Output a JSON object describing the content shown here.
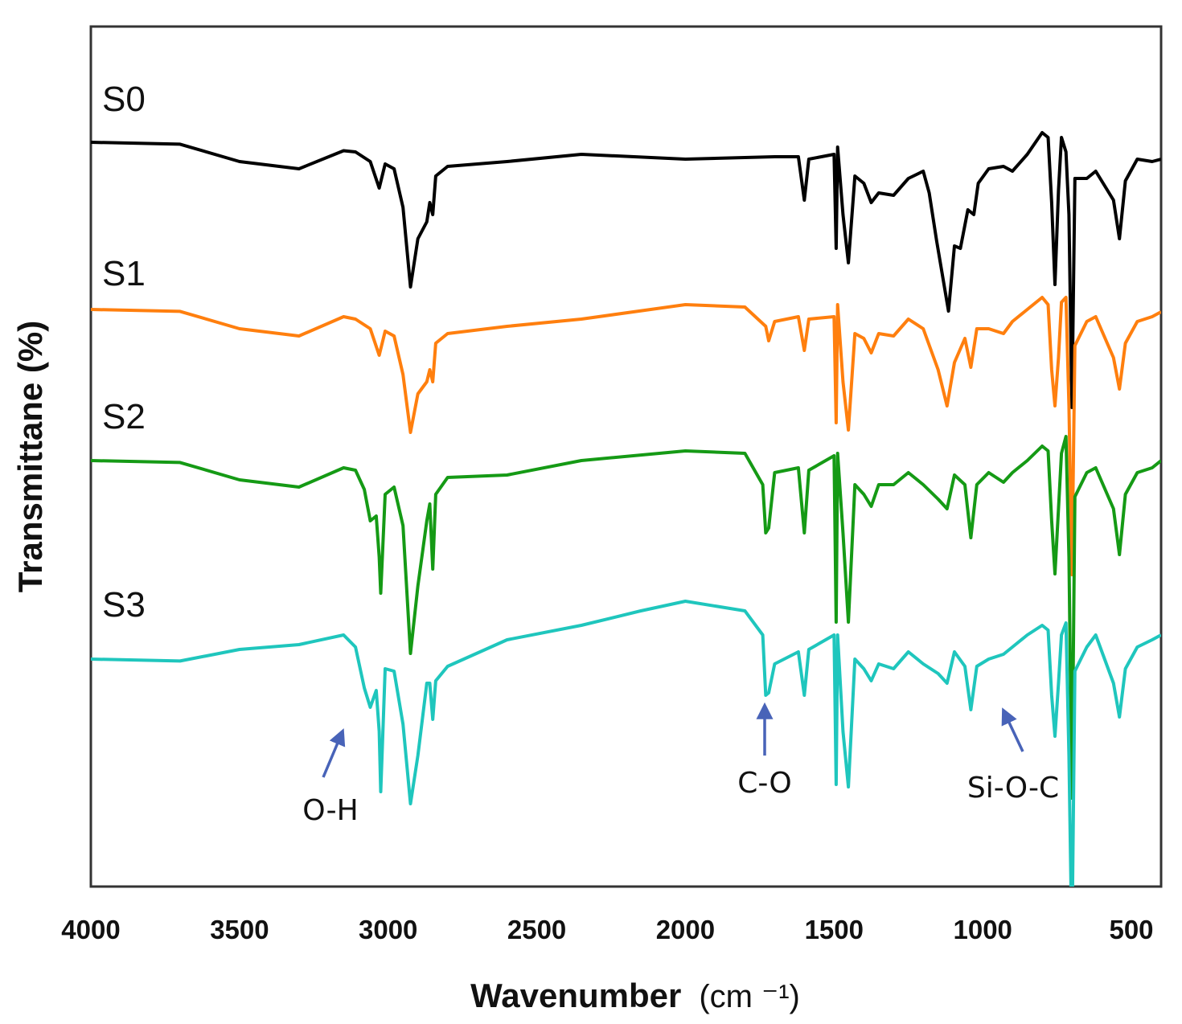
{
  "chart_data": {
    "type": "line",
    "xlabel": "Wavenumber",
    "xlabel_unit": "(cm ⁻¹)",
    "ylabel": "Transmittane (%)",
    "xlim": [
      4000,
      400
    ],
    "x_ticks": [
      4000,
      3500,
      3000,
      2500,
      2000,
      1500,
      1000,
      500
    ],
    "y_ticks_shown": false,
    "grid": false,
    "legend": "inline labels at left of each trace",
    "series": [
      {
        "name": "S0",
        "color": "#000000",
        "points": [
          [
            4000,
            0.0
          ],
          [
            3700,
            -0.8
          ],
          [
            3500,
            -8.0
          ],
          [
            3300,
            -11.0
          ],
          [
            3150,
            -3.5
          ],
          [
            3110,
            -4.0
          ],
          [
            3060,
            -8.0
          ],
          [
            3030,
            -19.0
          ],
          [
            3010,
            -9.0
          ],
          [
            2980,
            -11.0
          ],
          [
            2950,
            -27.0
          ],
          [
            2925,
            -60.0
          ],
          [
            2900,
            -40.0
          ],
          [
            2870,
            -33.0
          ],
          [
            2860,
            -25.0
          ],
          [
            2850,
            -30.0
          ],
          [
            2840,
            -14.0
          ],
          [
            2800,
            -10.0
          ],
          [
            2600,
            -8.0
          ],
          [
            2350,
            -5.0
          ],
          [
            2000,
            -7.0
          ],
          [
            1700,
            -6.0
          ],
          [
            1620,
            -6.0
          ],
          [
            1600,
            -24.0
          ],
          [
            1585,
            -7.0
          ],
          [
            1500,
            -5.0
          ],
          [
            1493,
            -44.0
          ],
          [
            1488,
            -2.0
          ],
          [
            1470,
            -30.0
          ],
          [
            1452,
            -50.0
          ],
          [
            1430,
            -14.0
          ],
          [
            1400,
            -17.0
          ],
          [
            1375,
            -25.0
          ],
          [
            1350,
            -21.0
          ],
          [
            1300,
            -22.0
          ],
          [
            1250,
            -15.0
          ],
          [
            1200,
            -12.0
          ],
          [
            1180,
            -21.0
          ],
          [
            1155,
            -41.0
          ],
          [
            1115,
            -70.0
          ],
          [
            1095,
            -43.0
          ],
          [
            1075,
            -44.0
          ],
          [
            1050,
            -28.0
          ],
          [
            1030,
            -30.0
          ],
          [
            1015,
            -17.0
          ],
          [
            980,
            -11.0
          ],
          [
            930,
            -10.0
          ],
          [
            900,
            -12.0
          ],
          [
            850,
            -5.0
          ],
          [
            800,
            4.0
          ],
          [
            780,
            2.0
          ],
          [
            768,
            -25.0
          ],
          [
            757,
            -59.0
          ],
          [
            745,
            -20.0
          ],
          [
            735,
            2.0
          ],
          [
            720,
            -4.0
          ],
          [
            710,
            -30.0
          ],
          [
            700,
            -110.0
          ],
          [
            690,
            -15.0
          ],
          [
            650,
            -15.0
          ],
          [
            620,
            -12.0
          ],
          [
            560,
            -24.0
          ],
          [
            540,
            -40.0
          ],
          [
            520,
            -16.0
          ],
          [
            480,
            -7.0
          ],
          [
            430,
            -8.0
          ],
          [
            400,
            -7.0
          ]
        ]
      },
      {
        "name": "S1",
        "color": "#ff7f0e",
        "points": [
          [
            4000,
            0.0
          ],
          [
            3700,
            -0.8
          ],
          [
            3500,
            -8.0
          ],
          [
            3300,
            -11.0
          ],
          [
            3150,
            -3.0
          ],
          [
            3110,
            -4.0
          ],
          [
            3060,
            -8.0
          ],
          [
            3030,
            -19.0
          ],
          [
            3010,
            -9.0
          ],
          [
            2980,
            -11.0
          ],
          [
            2950,
            -27.0
          ],
          [
            2925,
            -51.0
          ],
          [
            2900,
            -35.0
          ],
          [
            2870,
            -30.0
          ],
          [
            2860,
            -25.0
          ],
          [
            2850,
            -30.0
          ],
          [
            2840,
            -14.0
          ],
          [
            2800,
            -10.0
          ],
          [
            2600,
            -7.0
          ],
          [
            2350,
            -4.0
          ],
          [
            2000,
            2.0
          ],
          [
            1800,
            1.0
          ],
          [
            1730,
            -7.0
          ],
          [
            1720,
            -13.0
          ],
          [
            1700,
            -5.0
          ],
          [
            1620,
            -3.0
          ],
          [
            1600,
            -17.0
          ],
          [
            1585,
            -4.0
          ],
          [
            1500,
            -3.0
          ],
          [
            1493,
            -47.0
          ],
          [
            1488,
            2.0
          ],
          [
            1470,
            -30.0
          ],
          [
            1452,
            -50.0
          ],
          [
            1430,
            -10.0
          ],
          [
            1400,
            -12.0
          ],
          [
            1375,
            -18.0
          ],
          [
            1350,
            -10.0
          ],
          [
            1300,
            -11.0
          ],
          [
            1250,
            -4.0
          ],
          [
            1200,
            -8.0
          ],
          [
            1150,
            -25.0
          ],
          [
            1120,
            -40.0
          ],
          [
            1095,
            -22.0
          ],
          [
            1060,
            -12.0
          ],
          [
            1040,
            -24.0
          ],
          [
            1020,
            -8.0
          ],
          [
            980,
            -8.0
          ],
          [
            930,
            -10.0
          ],
          [
            900,
            -5.0
          ],
          [
            850,
            0.0
          ],
          [
            800,
            5.0
          ],
          [
            780,
            2.0
          ],
          [
            768,
            -25.0
          ],
          [
            757,
            -40.0
          ],
          [
            745,
            -20.0
          ],
          [
            735,
            3.0
          ],
          [
            720,
            5.0
          ],
          [
            710,
            -40.0
          ],
          [
            700,
            -110.0
          ],
          [
            690,
            -15.0
          ],
          [
            650,
            -5.0
          ],
          [
            620,
            -3.0
          ],
          [
            560,
            -20.0
          ],
          [
            540,
            -33.0
          ],
          [
            520,
            -14.0
          ],
          [
            480,
            -5.0
          ],
          [
            430,
            -3.0
          ],
          [
            400,
            -1.0
          ]
        ]
      },
      {
        "name": "S2",
        "color": "#159a15",
        "points": [
          [
            4000,
            0.0
          ],
          [
            3700,
            -0.8
          ],
          [
            3500,
            -8.0
          ],
          [
            3300,
            -11.0
          ],
          [
            3150,
            -3.0
          ],
          [
            3110,
            -4.0
          ],
          [
            3080,
            -12.0
          ],
          [
            3060,
            -25.0
          ],
          [
            3040,
            -23.0
          ],
          [
            3030,
            -40.0
          ],
          [
            3025,
            -55.0
          ],
          [
            3010,
            -14.0
          ],
          [
            2980,
            -11.0
          ],
          [
            2950,
            -27.0
          ],
          [
            2925,
            -80.0
          ],
          [
            2900,
            -52.0
          ],
          [
            2870,
            -25.0
          ],
          [
            2860,
            -18.0
          ],
          [
            2850,
            -45.0
          ],
          [
            2840,
            -14.0
          ],
          [
            2800,
            -7.0
          ],
          [
            2600,
            -6.0
          ],
          [
            2350,
            0.0
          ],
          [
            2000,
            4.0
          ],
          [
            1800,
            3.0
          ],
          [
            1740,
            -10.0
          ],
          [
            1730,
            -30.0
          ],
          [
            1720,
            -28.0
          ],
          [
            1700,
            -5.0
          ],
          [
            1620,
            -3.0
          ],
          [
            1600,
            -30.0
          ],
          [
            1585,
            -4.0
          ],
          [
            1500,
            2.0
          ],
          [
            1493,
            -67.0
          ],
          [
            1488,
            3.0
          ],
          [
            1470,
            -30.0
          ],
          [
            1452,
            -67.0
          ],
          [
            1430,
            -10.0
          ],
          [
            1400,
            -14.0
          ],
          [
            1375,
            -19.0
          ],
          [
            1350,
            -10.0
          ],
          [
            1300,
            -10.0
          ],
          [
            1250,
            -5.0
          ],
          [
            1200,
            -10.0
          ],
          [
            1150,
            -16.0
          ],
          [
            1120,
            -20.0
          ],
          [
            1095,
            -6.0
          ],
          [
            1060,
            -10.0
          ],
          [
            1040,
            -32.0
          ],
          [
            1020,
            -10.0
          ],
          [
            980,
            -5.0
          ],
          [
            930,
            -9.0
          ],
          [
            900,
            -5.0
          ],
          [
            850,
            0.0
          ],
          [
            800,
            6.0
          ],
          [
            780,
            4.0
          ],
          [
            768,
            -25.0
          ],
          [
            757,
            -47.0
          ],
          [
            745,
            -20.0
          ],
          [
            735,
            3.0
          ],
          [
            720,
            10.0
          ],
          [
            710,
            -40.0
          ],
          [
            700,
            -140.0
          ],
          [
            690,
            -15.0
          ],
          [
            650,
            -5.0
          ],
          [
            620,
            -3.0
          ],
          [
            560,
            -20.0
          ],
          [
            540,
            -39.0
          ],
          [
            520,
            -14.0
          ],
          [
            480,
            -5.0
          ],
          [
            430,
            -3.0
          ],
          [
            400,
            0.0
          ]
        ]
      },
      {
        "name": "S3",
        "color": "#1fc6bd",
        "points": [
          [
            4000,
            0.0
          ],
          [
            3700,
            -0.8
          ],
          [
            3500,
            4.0
          ],
          [
            3300,
            6.0
          ],
          [
            3150,
            10.0
          ],
          [
            3110,
            5.0
          ],
          [
            3080,
            -12.0
          ],
          [
            3060,
            -20.0
          ],
          [
            3040,
            -13.0
          ],
          [
            3030,
            -30.0
          ],
          [
            3025,
            -55.0
          ],
          [
            3010,
            -4.0
          ],
          [
            2980,
            -5.0
          ],
          [
            2950,
            -27.0
          ],
          [
            2925,
            -60.0
          ],
          [
            2900,
            -40.0
          ],
          [
            2870,
            -10.0
          ],
          [
            2860,
            -10.0
          ],
          [
            2850,
            -25.0
          ],
          [
            2840,
            -9.0
          ],
          [
            2800,
            -3.0
          ],
          [
            2600,
            8.0
          ],
          [
            2350,
            14.0
          ],
          [
            2150,
            20.0
          ],
          [
            2000,
            24.0
          ],
          [
            1800,
            20.0
          ],
          [
            1740,
            10.0
          ],
          [
            1730,
            -15.0
          ],
          [
            1720,
            -14.0
          ],
          [
            1700,
            -2.0
          ],
          [
            1620,
            3.0
          ],
          [
            1600,
            -15.0
          ],
          [
            1585,
            4.0
          ],
          [
            1500,
            10.0
          ],
          [
            1493,
            -52.0
          ],
          [
            1488,
            10.0
          ],
          [
            1470,
            -30.0
          ],
          [
            1452,
            -53.0
          ],
          [
            1430,
            0.0
          ],
          [
            1400,
            -4.0
          ],
          [
            1375,
            -9.0
          ],
          [
            1350,
            -2.0
          ],
          [
            1300,
            -4.0
          ],
          [
            1250,
            3.0
          ],
          [
            1200,
            -2.0
          ],
          [
            1150,
            -6.0
          ],
          [
            1120,
            -10.0
          ],
          [
            1095,
            3.0
          ],
          [
            1060,
            -3.0
          ],
          [
            1040,
            -21.0
          ],
          [
            1020,
            -3.0
          ],
          [
            980,
            0.0
          ],
          [
            930,
            2.0
          ],
          [
            900,
            5.0
          ],
          [
            850,
            10.0
          ],
          [
            800,
            14.0
          ],
          [
            780,
            12.0
          ],
          [
            768,
            -15.0
          ],
          [
            757,
            -32.0
          ],
          [
            745,
            -10.0
          ],
          [
            735,
            10.0
          ],
          [
            720,
            15.0
          ],
          [
            710,
            -40.0
          ],
          [
            700,
            -120.0
          ],
          [
            690,
            -5.0
          ],
          [
            650,
            5.0
          ],
          [
            620,
            10.0
          ],
          [
            560,
            -10.0
          ],
          [
            540,
            -24.0
          ],
          [
            520,
            -4.0
          ],
          [
            480,
            5.0
          ],
          [
            430,
            8.0
          ],
          [
            400,
            10.0
          ]
        ]
      }
    ],
    "annotations": [
      {
        "label": "O-H",
        "color": "#4863b8"
      },
      {
        "label": "C-O",
        "color": "#4863b8"
      },
      {
        "label": "Si-O-C",
        "color": "#4863b8"
      }
    ]
  }
}
